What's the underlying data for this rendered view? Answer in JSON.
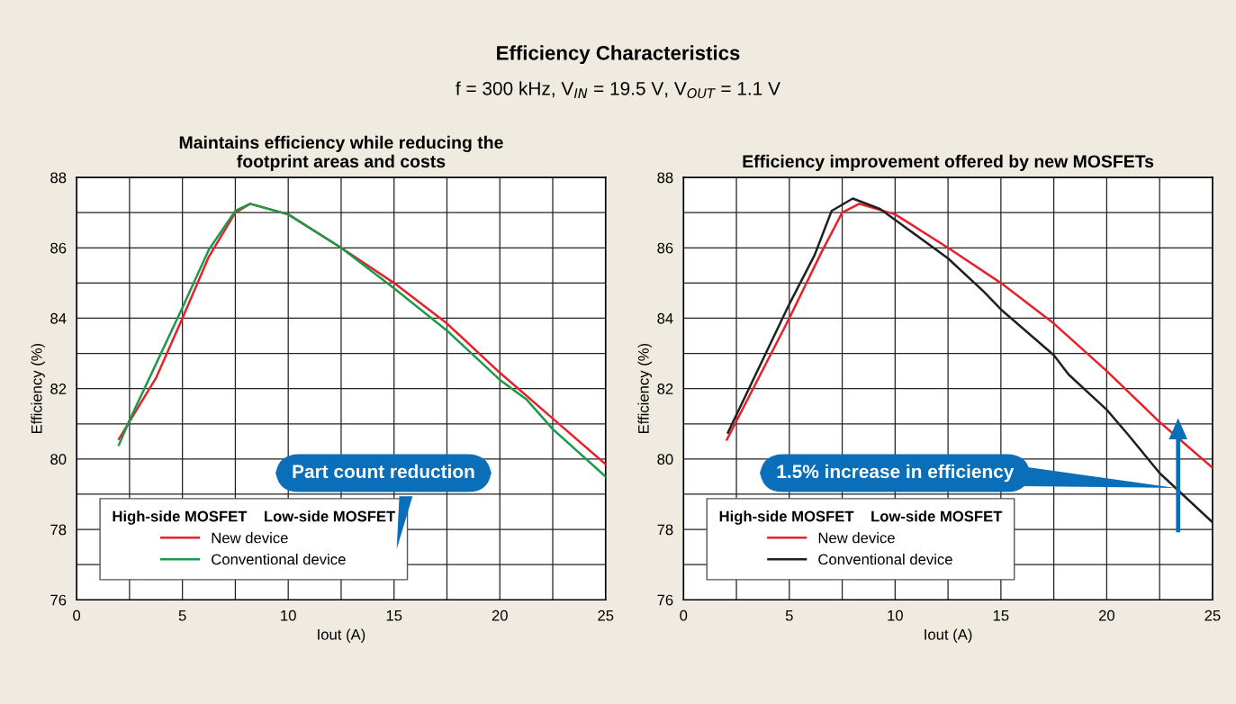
{
  "chart_data": [
    {
      "type": "line",
      "title": "Maintains efficiency while reducing the\nfootprint areas and costs",
      "xlabel": "Iout (A)",
      "ylabel": "Efficiency (%)",
      "xlim": [
        0,
        25
      ],
      "xticks": [
        0,
        5,
        10,
        15,
        20,
        25
      ],
      "ylim": [
        76,
        88
      ],
      "yticks": [
        76,
        78,
        80,
        82,
        84,
        86,
        88
      ],
      "grid": true,
      "legend": "bottom left",
      "legend_title": "High-side MOSFET    Low-side MOSFET",
      "annotations": [
        "Efficiency Characteristics",
        "f = 300 kHz, V$_{IN}$ = 19.5 V, V$_{OUT}$ = 1.1 V",
        "Part count reduction"
      ],
      "series": [
        {
          "name": "New device",
          "color": "#e8202a",
          "x": [
            2.0,
            3.75,
            5,
            6.25,
            7.5,
            8.2,
            10,
            12.5,
            15,
            17.5,
            20,
            22.5,
            25
          ],
          "values": [
            80.57,
            82.3,
            84.0,
            85.75,
            87.0,
            87.25,
            86.95,
            86.0,
            85.0,
            83.85,
            82.45,
            81.15,
            79.85
          ]
        },
        {
          "name": "Conventional device",
          "color": "#1a9a4a",
          "x": [
            2.0,
            2.5,
            5,
            6.25,
            7.5,
            8.2,
            10,
            12.5,
            15,
            17.5,
            20,
            21.25,
            22.5,
            25
          ],
          "values": [
            80.4,
            81.1,
            84.3,
            85.95,
            87.05,
            87.25,
            86.95,
            86.0,
            84.85,
            83.65,
            82.25,
            81.7,
            80.85,
            79.5
          ]
        }
      ]
    },
    {
      "type": "line",
      "title": "Efficiency improvement offered by new MOSFETs",
      "xlabel": "Iout (A)",
      "ylabel": "Efficiency (%)",
      "xlim": [
        0,
        25
      ],
      "xticks": [
        0,
        5,
        10,
        15,
        20,
        25
      ],
      "ylim": [
        76,
        88
      ],
      "yticks": [
        76,
        78,
        80,
        82,
        84,
        86,
        88
      ],
      "grid": true,
      "legend": "bottom left",
      "legend_title": "High-side MOSFET    Low-side MOSFET",
      "annotations": [
        "1.5% increase in efficiency"
      ],
      "series": [
        {
          "name": "New device",
          "color": "#e8202a",
          "x": [
            2.05,
            5,
            6.5,
            7.5,
            8.3,
            10,
            12.5,
            15,
            17.5,
            20,
            22.5,
            25
          ],
          "values": [
            80.55,
            84.0,
            85.85,
            87.0,
            87.25,
            86.95,
            86.0,
            85.0,
            83.85,
            82.5,
            81.05,
            79.75
          ]
        },
        {
          "name": "Conventional device",
          "color": "#231f20",
          "x": [
            2.1,
            5,
            6.2,
            7,
            8,
            9.3,
            10.9,
            12.5,
            14.2,
            15,
            17.5,
            18.2,
            20,
            21,
            22.5,
            25
          ],
          "values": [
            80.75,
            84.4,
            85.8,
            87.05,
            87.4,
            87.1,
            86.4,
            85.7,
            84.75,
            84.25,
            82.95,
            82.4,
            81.4,
            80.7,
            79.6,
            78.2
          ]
        }
      ]
    }
  ]
}
